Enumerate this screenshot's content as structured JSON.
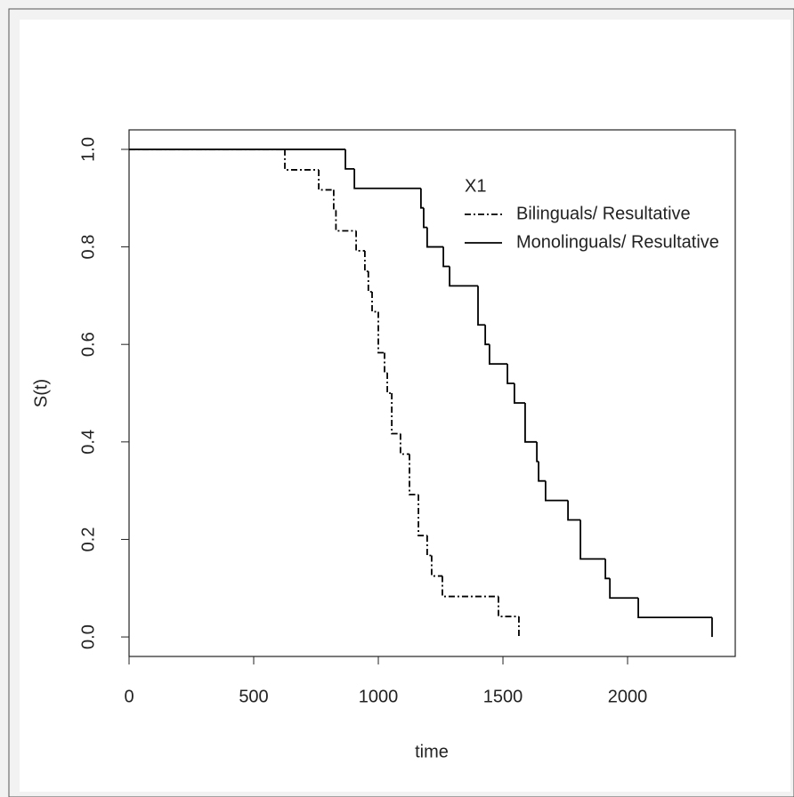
{
  "chart_data": {
    "type": "line",
    "drawstyle": "steps-post",
    "xlabel": "time",
    "ylabel": "S(t)",
    "xlim": [
      0,
      2432
    ],
    "ylim": [
      -0.04,
      1.04
    ],
    "xticks": [
      0,
      500,
      1000,
      1500,
      2000
    ],
    "yticks": [
      {
        "value": 0,
        "label": "0.0"
      },
      0.2,
      0.4,
      0.6,
      0.8,
      {
        "value": 1,
        "label": "1.0"
      }
    ],
    "legend_title": "X1",
    "legend_position": "top-right",
    "series": [
      {
        "name": "Bilinguals/ Resultative",
        "color": "#000000",
        "linestyle": "dashdot",
        "x": [
          0,
          625,
          761,
          821,
          830,
          911,
          946,
          960,
          975,
          1000,
          1025,
          1036,
          1054,
          1089,
          1125,
          1161,
          1196,
          1214,
          1257,
          1482,
          1564
        ],
        "values": [
          1,
          0.958,
          0.917,
          0.875,
          0.833,
          0.792,
          0.75,
          0.708,
          0.667,
          0.583,
          0.542,
          0.5,
          0.417,
          0.375,
          0.292,
          0.208,
          0.167,
          0.125,
          0.083,
          0.042,
          0
        ]
      },
      {
        "name": "Monolinguals/ Resultative",
        "color": "#000000",
        "linestyle": "solid",
        "x": [
          0,
          868,
          904,
          1171,
          1182,
          1196,
          1261,
          1286,
          1400,
          1429,
          1446,
          1518,
          1546,
          1589,
          1636,
          1643,
          1671,
          1761,
          1811,
          1911,
          1929,
          2043,
          2339
        ],
        "values": [
          1,
          0.96,
          0.92,
          0.88,
          0.84,
          0.8,
          0.76,
          0.72,
          0.64,
          0.6,
          0.56,
          0.52,
          0.48,
          0.4,
          0.36,
          0.32,
          0.28,
          0.24,
          0.16,
          0.12,
          0.08,
          0.04,
          0
        ]
      }
    ]
  }
}
